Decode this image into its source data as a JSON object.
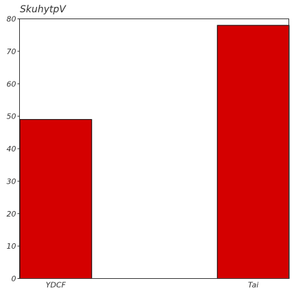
{
  "chart_data": {
    "type": "bar",
    "title": "SkuhytpV",
    "xlabel": "",
    "ylabel": "",
    "categories": [
      "YDCF",
      "Tai"
    ],
    "values": [
      49,
      78
    ],
    "ylim": [
      0,
      80
    ],
    "yticks": [
      0,
      10,
      20,
      30,
      40,
      50,
      60,
      70,
      80
    ],
    "grid": false,
    "bar_color": "#d40000",
    "bar_edge_color": "#000000"
  }
}
